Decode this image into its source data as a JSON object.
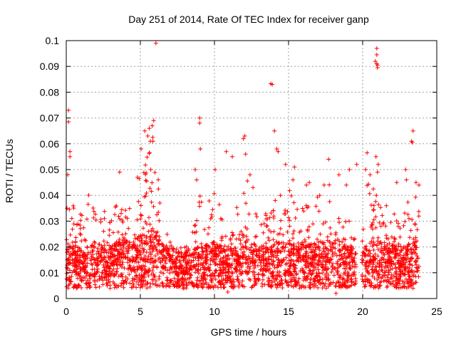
{
  "chart_data": {
    "type": "scatter",
    "title": "Day 251 of 2014, Rate Of TEC Index for receiver ganp",
    "xlabel": "GPS time / hours",
    "ylabel": "ROTI / TECUs",
    "xlim": [
      0,
      25
    ],
    "ylim": [
      0,
      0.1
    ],
    "xticks": [
      0,
      5,
      10,
      15,
      20,
      25
    ],
    "yticks": [
      0,
      0.01,
      0.02,
      0.03,
      0.04,
      0.05,
      0.06,
      0.07,
      0.08,
      0.09,
      0.1
    ],
    "xtick_labels": [
      "0",
      "5",
      "10",
      "15",
      "20",
      "25"
    ],
    "ytick_labels": [
      "0",
      "0.01",
      "0.02",
      "0.03",
      "0.04",
      "0.05",
      "0.06",
      "0.07",
      "0.08",
      "0.09",
      "0.1"
    ],
    "grid": true,
    "marker": "+",
    "color": "#ff0000",
    "series": [
      {
        "name": "ROTI",
        "envelope_hours": [
          0,
          0.5,
          1,
          1.5,
          2,
          2.5,
          3,
          3.5,
          4,
          4.5,
          5,
          5.5,
          6,
          6.5,
          7,
          7.5,
          8,
          8.5,
          9,
          9.5,
          10,
          10.5,
          11,
          11.5,
          12,
          12.5,
          13,
          13.5,
          14,
          14.5,
          15,
          15.5,
          16,
          16.5,
          17,
          17.5,
          18,
          18.5,
          19,
          19.5,
          20,
          20.5,
          21,
          21.5,
          22,
          22.5,
          23,
          23.5,
          23.8
        ],
        "envelope_typical": [
          0.012,
          0.013,
          0.012,
          0.012,
          0.014,
          0.013,
          0.012,
          0.015,
          0.016,
          0.014,
          0.017,
          0.018,
          0.02,
          0.013,
          0.011,
          0.01,
          0.01,
          0.011,
          0.014,
          0.013,
          0.014,
          0.013,
          0.012,
          0.012,
          0.015,
          0.014,
          0.012,
          0.013,
          0.014,
          0.014,
          0.015,
          0.014,
          0.014,
          0.013,
          0.014,
          0.014,
          0.014,
          0.013,
          0.013,
          0.012,
          0.013,
          0.014,
          0.015,
          0.014,
          0.013,
          0.012,
          0.013,
          0.014,
          0.015
        ],
        "envelope_max": [
          0.04,
          0.036,
          0.035,
          0.04,
          0.045,
          0.035,
          0.03,
          0.04,
          0.045,
          0.04,
          0.05,
          0.06,
          0.065,
          0.04,
          0.025,
          0.02,
          0.02,
          0.025,
          0.045,
          0.035,
          0.045,
          0.04,
          0.03,
          0.035,
          0.055,
          0.045,
          0.03,
          0.035,
          0.04,
          0.045,
          0.045,
          0.035,
          0.04,
          0.035,
          0.04,
          0.045,
          0.045,
          0.035,
          0.04,
          0.035,
          0.045,
          0.045,
          0.045,
          0.035,
          0.035,
          0.03,
          0.04,
          0.04,
          0.04
        ],
        "gap_hours": [
          19.55,
          19.95
        ],
        "outliers": [
          {
            "x": 0.15,
            "y": 0.073
          },
          {
            "x": 0.15,
            "y": 0.0685
          },
          {
            "x": 0.25,
            "y": 0.055
          },
          {
            "x": 0.25,
            "y": 0.057
          },
          {
            "x": 0.1,
            "y": 0.048
          },
          {
            "x": 0.05,
            "y": 0.035
          },
          {
            "x": 6.05,
            "y": 0.099
          },
          {
            "x": 5.9,
            "y": 0.069
          },
          {
            "x": 5.8,
            "y": 0.067
          },
          {
            "x": 5.6,
            "y": 0.066
          },
          {
            "x": 5.3,
            "y": 0.065
          },
          {
            "x": 5.5,
            "y": 0.063
          },
          {
            "x": 5.05,
            "y": 0.058
          },
          {
            "x": 5.85,
            "y": 0.061
          },
          {
            "x": 9.0,
            "y": 0.07
          },
          {
            "x": 9.0,
            "y": 0.068
          },
          {
            "x": 9.05,
            "y": 0.058
          },
          {
            "x": 8.7,
            "y": 0.05
          },
          {
            "x": 10.05,
            "y": 0.05
          },
          {
            "x": 10.8,
            "y": 0.057
          },
          {
            "x": 11.2,
            "y": 0.055
          },
          {
            "x": 12.05,
            "y": 0.063
          },
          {
            "x": 11.95,
            "y": 0.062
          },
          {
            "x": 12.1,
            "y": 0.056
          },
          {
            "x": 12.4,
            "y": 0.048
          },
          {
            "x": 13.8,
            "y": 0.0833
          },
          {
            "x": 13.9,
            "y": 0.083
          },
          {
            "x": 14.05,
            "y": 0.065
          },
          {
            "x": 14.2,
            "y": 0.058
          },
          {
            "x": 14.3,
            "y": 0.057
          },
          {
            "x": 14.8,
            "y": 0.052
          },
          {
            "x": 15.4,
            "y": 0.051
          },
          {
            "x": 17.7,
            "y": 0.054
          },
          {
            "x": 18.4,
            "y": 0.048
          },
          {
            "x": 19.1,
            "y": 0.05
          },
          {
            "x": 19.6,
            "y": 0.052
          },
          {
            "x": 20.3,
            "y": 0.0565
          },
          {
            "x": 20.2,
            "y": 0.05
          },
          {
            "x": 20.5,
            "y": 0.048
          },
          {
            "x": 20.95,
            "y": 0.097
          },
          {
            "x": 20.95,
            "y": 0.0945
          },
          {
            "x": 20.85,
            "y": 0.092
          },
          {
            "x": 20.95,
            "y": 0.091
          },
          {
            "x": 21.0,
            "y": 0.0895
          },
          {
            "x": 21.0,
            "y": 0.0905
          },
          {
            "x": 20.9,
            "y": 0.055
          },
          {
            "x": 21.05,
            "y": 0.052
          },
          {
            "x": 21.0,
            "y": 0.049
          },
          {
            "x": 22.3,
            "y": 0.045
          },
          {
            "x": 22.9,
            "y": 0.05
          },
          {
            "x": 23.4,
            "y": 0.065
          },
          {
            "x": 23.3,
            "y": 0.061
          },
          {
            "x": 23.35,
            "y": 0.0605
          },
          {
            "x": 23.6,
            "y": 0.045
          },
          {
            "x": 23.8,
            "y": 0.044
          },
          {
            "x": 10.9,
            "y": 0.0025
          },
          {
            "x": 18.2,
            "y": 0.002
          },
          {
            "x": 14.0,
            "y": 0.032
          },
          {
            "x": 14.1,
            "y": 0.038
          },
          {
            "x": 22.95,
            "y": 0.046
          },
          {
            "x": 8.8,
            "y": 0.046
          },
          {
            "x": 12.6,
            "y": 0.043
          },
          {
            "x": 15.3,
            "y": 0.046
          },
          {
            "x": 16.2,
            "y": 0.044
          },
          {
            "x": 16.4,
            "y": 0.045
          },
          {
            "x": 17.4,
            "y": 0.044
          },
          {
            "x": 18.9,
            "y": 0.044
          },
          {
            "x": 21.6,
            "y": 0.036
          },
          {
            "x": 22.4,
            "y": 0.028
          },
          {
            "x": 3.6,
            "y": 0.049
          },
          {
            "x": 4.8,
            "y": 0.047
          },
          {
            "x": 5.7,
            "y": 0.05
          }
        ]
      }
    ]
  }
}
